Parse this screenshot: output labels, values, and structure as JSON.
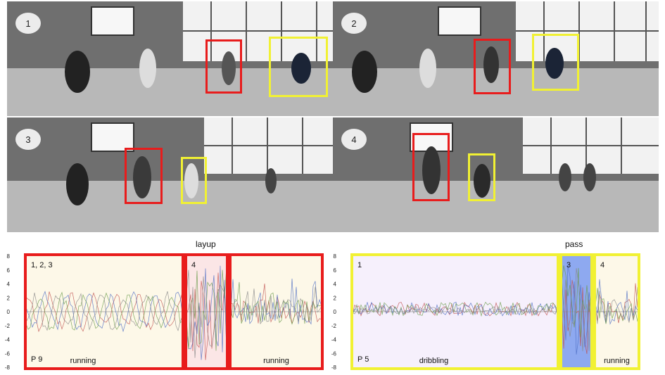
{
  "frames": [
    {
      "label": "1"
    },
    {
      "label": "2"
    },
    {
      "label": "3"
    },
    {
      "label": "4"
    }
  ],
  "colors": {
    "red": "#e81c1c",
    "yellow": "#f1f133",
    "blue": "#8ea9f0",
    "cream": "#fdf8e8",
    "lavender": "#f6f0fc",
    "pink": "#fbe6e6"
  },
  "plots": [
    {
      "title": "layup",
      "player": "P 9",
      "yticks": [
        "8",
        "6",
        "4",
        "2",
        "0",
        "-2",
        "-4",
        "-6",
        "-8"
      ],
      "segments": [
        {
          "tag": "1, 2, 3",
          "activity": "running"
        },
        {
          "tag": "4",
          "activity": ""
        },
        {
          "tag": "",
          "activity": "running"
        }
      ]
    },
    {
      "title": "pass",
      "player": "P 5",
      "yticks": [
        "8",
        "6",
        "4",
        "2",
        "0",
        "-2",
        "-4",
        "-6",
        "-8"
      ],
      "segments": [
        {
          "tag": "1",
          "activity": "dribbling"
        },
        {
          "tag": "3",
          "activity": ""
        },
        {
          "tag": "4",
          "activity": "running"
        }
      ]
    }
  ]
}
